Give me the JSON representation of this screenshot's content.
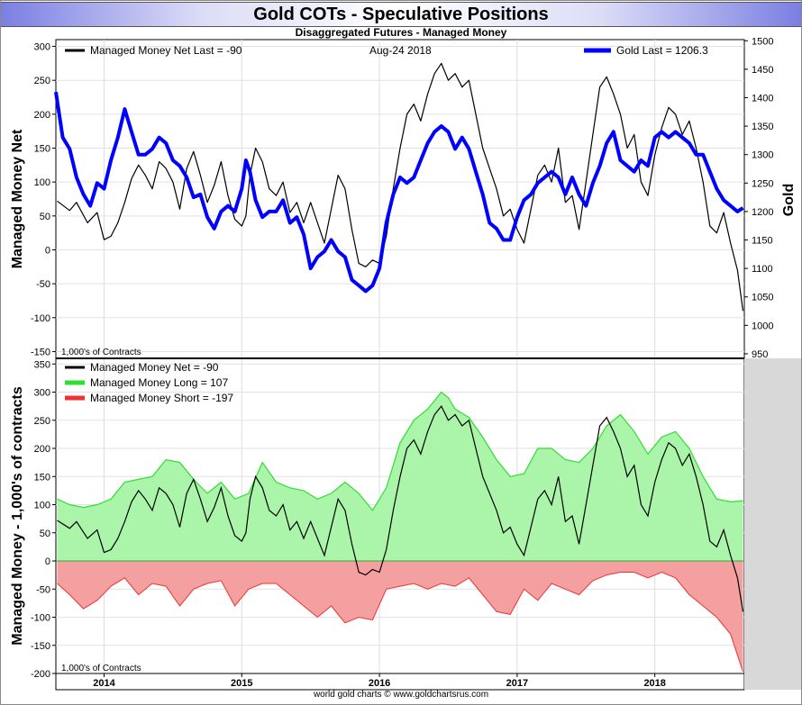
{
  "title": "Gold COTs - Speculative Positions",
  "subtitle": "Disaggregated Futures - Managed Money",
  "footer": "world gold charts © www.goldchartsrus.com",
  "top_panel": {
    "legend_net": "Managed Money Net   Last = -90",
    "date": "Aug-24  2018",
    "legend_gold": "Gold Last = 1206.3",
    "unit_note": "1,000's of Contracts",
    "ylabel_left": "Managed Money Net",
    "ylabel_right": "Gold"
  },
  "bottom_panel": {
    "legend_net": "Managed Money Net     = -90",
    "legend_long": "Managed Money Long   = 107",
    "legend_short": "Managed Money Short  = -197",
    "unit_note": "1,000's of Contracts",
    "ylabel_left": "Managed Money - 1,000's of contracts"
  },
  "colors": {
    "net": "#000000",
    "gold": "#0000ff",
    "long": "#33dd33",
    "long_fill": "#aaf5aa",
    "short": "#ee3333",
    "short_fill": "#f5a0a0"
  },
  "chart_data": [
    {
      "type": "line",
      "x_ticks": [
        "2014",
        "2015",
        "2016",
        "2017",
        "2018"
      ],
      "left_axis": {
        "ylim": [
          -160,
          310
        ],
        "ticks": [
          300,
          250,
          200,
          150,
          100,
          50,
          0,
          -50,
          -100,
          -150
        ]
      },
      "right_axis": {
        "ylim": [
          942,
          1502
        ],
        "ticks": [
          1500,
          1450,
          1400,
          1350,
          1300,
          1250,
          1200,
          1150,
          1100,
          1050,
          1000,
          950
        ]
      },
      "x_range": [
        2013.65,
        2018.65
      ],
      "series": [
        {
          "name": "Managed Money Net",
          "axis": "left",
          "x": [
            2013.66,
            2013.75,
            2013.8,
            2013.88,
            2013.95,
            2014.0,
            2014.05,
            2014.1,
            2014.15,
            2014.2,
            2014.25,
            2014.3,
            2014.35,
            2014.4,
            2014.45,
            2014.5,
            2014.55,
            2014.6,
            2014.65,
            2014.7,
            2014.75,
            2014.8,
            2014.85,
            2014.9,
            2014.95,
            2015.0,
            2015.03,
            2015.06,
            2015.1,
            2015.15,
            2015.2,
            2015.25,
            2015.3,
            2015.35,
            2015.4,
            2015.45,
            2015.5,
            2015.55,
            2015.6,
            2015.65,
            2015.7,
            2015.75,
            2015.8,
            2015.85,
            2015.9,
            2015.95,
            2016.0,
            2016.05,
            2016.1,
            2016.15,
            2016.2,
            2016.25,
            2016.3,
            2016.35,
            2016.4,
            2016.45,
            2016.5,
            2016.55,
            2016.6,
            2016.65,
            2016.7,
            2016.75,
            2016.8,
            2016.85,
            2016.9,
            2016.95,
            2017.0,
            2017.05,
            2017.1,
            2017.15,
            2017.2,
            2017.25,
            2017.3,
            2017.35,
            2017.4,
            2017.45,
            2017.5,
            2017.55,
            2017.6,
            2017.65,
            2017.7,
            2017.75,
            2017.8,
            2017.85,
            2017.9,
            2017.95,
            2018.0,
            2018.05,
            2018.1,
            2018.15,
            2018.2,
            2018.25,
            2018.3,
            2018.35,
            2018.4,
            2018.45,
            2018.5,
            2018.55,
            2018.6,
            2018.64
          ],
          "values": [
            72,
            58,
            70,
            40,
            55,
            15,
            20,
            40,
            70,
            105,
            125,
            110,
            90,
            130,
            120,
            100,
            60,
            120,
            145,
            110,
            70,
            95,
            130,
            80,
            45,
            35,
            50,
            110,
            150,
            130,
            90,
            80,
            100,
            55,
            70,
            40,
            70,
            40,
            10,
            60,
            110,
            90,
            30,
            -20,
            -25,
            -15,
            -20,
            20,
            90,
            150,
            200,
            215,
            190,
            230,
            260,
            275,
            250,
            260,
            240,
            250,
            200,
            150,
            120,
            90,
            50,
            60,
            30,
            10,
            60,
            110,
            125,
            100,
            150,
            70,
            80,
            30,
            100,
            170,
            240,
            255,
            230,
            200,
            150,
            170,
            100,
            80,
            140,
            180,
            210,
            200,
            170,
            190,
            150,
            100,
            35,
            25,
            55,
            10,
            -30,
            -90
          ]
        },
        {
          "name": "Gold",
          "axis": "right",
          "x": [
            2013.65,
            2013.7,
            2013.75,
            2013.8,
            2013.85,
            2013.9,
            2013.95,
            2014.0,
            2014.05,
            2014.1,
            2014.15,
            2014.2,
            2014.25,
            2014.3,
            2014.35,
            2014.4,
            2014.45,
            2014.5,
            2014.55,
            2014.6,
            2014.65,
            2014.7,
            2014.75,
            2014.8,
            2014.85,
            2014.9,
            2014.95,
            2015.0,
            2015.03,
            2015.06,
            2015.1,
            2015.15,
            2015.2,
            2015.25,
            2015.3,
            2015.35,
            2015.4,
            2015.45,
            2015.5,
            2015.55,
            2015.6,
            2015.65,
            2015.7,
            2015.75,
            2015.8,
            2015.85,
            2015.9,
            2015.95,
            2016.0,
            2016.05,
            2016.1,
            2016.15,
            2016.2,
            2016.25,
            2016.3,
            2016.35,
            2016.4,
            2016.45,
            2016.5,
            2016.55,
            2016.6,
            2016.65,
            2016.7,
            2016.75,
            2016.8,
            2016.85,
            2016.9,
            2016.95,
            2017.0,
            2017.05,
            2017.1,
            2017.15,
            2017.2,
            2017.25,
            2017.3,
            2017.35,
            2017.4,
            2017.45,
            2017.5,
            2017.55,
            2017.6,
            2017.65,
            2017.7,
            2017.75,
            2017.8,
            2017.85,
            2017.9,
            2017.95,
            2018.0,
            2018.05,
            2018.1,
            2018.15,
            2018.2,
            2018.25,
            2018.3,
            2018.35,
            2018.4,
            2018.45,
            2018.5,
            2018.55,
            2018.6,
            2018.64
          ],
          "values": [
            1410,
            1330,
            1310,
            1260,
            1230,
            1210,
            1250,
            1240,
            1290,
            1330,
            1380,
            1340,
            1300,
            1300,
            1310,
            1330,
            1320,
            1290,
            1280,
            1260,
            1225,
            1230,
            1190,
            1170,
            1200,
            1210,
            1200,
            1240,
            1290,
            1270,
            1220,
            1190,
            1200,
            1200,
            1220,
            1180,
            1190,
            1160,
            1100,
            1120,
            1130,
            1150,
            1130,
            1120,
            1080,
            1070,
            1060,
            1070,
            1100,
            1180,
            1230,
            1260,
            1250,
            1260,
            1290,
            1320,
            1340,
            1350,
            1340,
            1310,
            1330,
            1310,
            1270,
            1230,
            1180,
            1170,
            1150,
            1150,
            1190,
            1220,
            1230,
            1250,
            1260,
            1270,
            1260,
            1230,
            1260,
            1230,
            1210,
            1250,
            1280,
            1320,
            1340,
            1290,
            1280,
            1270,
            1290,
            1280,
            1330,
            1340,
            1330,
            1340,
            1330,
            1320,
            1300,
            1300,
            1270,
            1240,
            1220,
            1210,
            1200,
            1206.3
          ]
        }
      ]
    },
    {
      "type": "area",
      "x_ticks": [
        "2014",
        "2015",
        "2016",
        "2017",
        "2018"
      ],
      "left_axis": {
        "ylim": [
          -200,
          360
        ],
        "ticks": [
          350,
          300,
          250,
          200,
          150,
          100,
          50,
          0,
          -50,
          -100,
          -150,
          -200
        ]
      },
      "x_range": [
        2013.65,
        2018.65
      ],
      "series": [
        {
          "name": "Managed Money Long",
          "x": [
            2013.66,
            2013.75,
            2013.85,
            2013.95,
            2014.05,
            2014.15,
            2014.25,
            2014.35,
            2014.45,
            2014.55,
            2014.65,
            2014.75,
            2014.85,
            2014.95,
            2015.05,
            2015.15,
            2015.25,
            2015.35,
            2015.45,
            2015.55,
            2015.65,
            2015.75,
            2015.85,
            2015.95,
            2016.05,
            2016.15,
            2016.25,
            2016.35,
            2016.45,
            2016.5,
            2016.55,
            2016.65,
            2016.75,
            2016.85,
            2016.95,
            2017.05,
            2017.15,
            2017.25,
            2017.35,
            2017.45,
            2017.55,
            2017.65,
            2017.75,
            2017.85,
            2017.95,
            2018.05,
            2018.15,
            2018.25,
            2018.35,
            2018.45,
            2018.55,
            2018.64
          ],
          "values": [
            110,
            100,
            95,
            100,
            110,
            140,
            145,
            150,
            180,
            175,
            145,
            120,
            140,
            110,
            120,
            175,
            140,
            130,
            125,
            110,
            120,
            140,
            120,
            90,
            130,
            210,
            250,
            270,
            300,
            290,
            270,
            255,
            220,
            180,
            150,
            155,
            200,
            200,
            180,
            175,
            200,
            240,
            260,
            230,
            190,
            220,
            230,
            200,
            150,
            110,
            105,
            107
          ]
        },
        {
          "name": "Managed Money Short",
          "x": [
            2013.66,
            2013.75,
            2013.85,
            2013.95,
            2014.05,
            2014.15,
            2014.25,
            2014.35,
            2014.45,
            2014.55,
            2014.65,
            2014.75,
            2014.85,
            2014.95,
            2015.05,
            2015.15,
            2015.25,
            2015.35,
            2015.45,
            2015.55,
            2015.65,
            2015.75,
            2015.85,
            2015.95,
            2016.05,
            2016.15,
            2016.25,
            2016.35,
            2016.45,
            2016.55,
            2016.65,
            2016.75,
            2016.85,
            2016.95,
            2017.05,
            2017.15,
            2017.25,
            2017.35,
            2017.45,
            2017.55,
            2017.65,
            2017.75,
            2017.85,
            2017.95,
            2018.05,
            2018.15,
            2018.25,
            2018.35,
            2018.45,
            2018.55,
            2018.64
          ],
          "values": [
            -40,
            -60,
            -85,
            -70,
            -45,
            -30,
            -60,
            -40,
            -45,
            -80,
            -50,
            -40,
            -35,
            -80,
            -50,
            -40,
            -40,
            -60,
            -80,
            -100,
            -80,
            -110,
            -100,
            -105,
            -50,
            -45,
            -40,
            -50,
            -40,
            -45,
            -30,
            -60,
            -90,
            -95,
            -50,
            -70,
            -40,
            -50,
            -60,
            -35,
            -25,
            -20,
            -20,
            -30,
            -20,
            -30,
            -60,
            -80,
            -100,
            -130,
            -197
          ]
        },
        {
          "name": "Managed Money Net",
          "x": [
            2013.66,
            2013.75,
            2013.8,
            2013.88,
            2013.95,
            2014.0,
            2014.05,
            2014.1,
            2014.15,
            2014.2,
            2014.25,
            2014.3,
            2014.35,
            2014.4,
            2014.45,
            2014.5,
            2014.55,
            2014.6,
            2014.65,
            2014.7,
            2014.75,
            2014.8,
            2014.85,
            2014.9,
            2014.95,
            2015.0,
            2015.03,
            2015.06,
            2015.1,
            2015.15,
            2015.2,
            2015.25,
            2015.3,
            2015.35,
            2015.4,
            2015.45,
            2015.5,
            2015.55,
            2015.6,
            2015.65,
            2015.7,
            2015.75,
            2015.8,
            2015.85,
            2015.9,
            2015.95,
            2016.0,
            2016.05,
            2016.1,
            2016.15,
            2016.2,
            2016.25,
            2016.3,
            2016.35,
            2016.4,
            2016.45,
            2016.5,
            2016.55,
            2016.6,
            2016.65,
            2016.7,
            2016.75,
            2016.8,
            2016.85,
            2016.9,
            2016.95,
            2017.0,
            2017.05,
            2017.1,
            2017.15,
            2017.2,
            2017.25,
            2017.3,
            2017.35,
            2017.4,
            2017.45,
            2017.5,
            2017.55,
            2017.6,
            2017.65,
            2017.7,
            2017.75,
            2017.8,
            2017.85,
            2017.9,
            2017.95,
            2018.0,
            2018.05,
            2018.1,
            2018.15,
            2018.2,
            2018.25,
            2018.3,
            2018.35,
            2018.4,
            2018.45,
            2018.5,
            2018.55,
            2018.6,
            2018.64
          ],
          "values": [
            72,
            58,
            70,
            40,
            55,
            15,
            20,
            40,
            70,
            105,
            125,
            110,
            90,
            130,
            120,
            100,
            60,
            120,
            145,
            110,
            70,
            95,
            130,
            80,
            45,
            35,
            50,
            110,
            150,
            130,
            90,
            80,
            100,
            55,
            70,
            40,
            70,
            40,
            10,
            60,
            110,
            90,
            30,
            -20,
            -25,
            -15,
            -20,
            20,
            90,
            150,
            200,
            215,
            190,
            230,
            260,
            275,
            250,
            260,
            240,
            250,
            200,
            150,
            120,
            90,
            50,
            60,
            30,
            10,
            60,
            110,
            125,
            100,
            150,
            70,
            80,
            30,
            100,
            170,
            240,
            255,
            230,
            200,
            150,
            170,
            100,
            80,
            140,
            180,
            210,
            200,
            170,
            190,
            150,
            100,
            35,
            25,
            55,
            10,
            -30,
            -90
          ]
        }
      ]
    }
  ]
}
